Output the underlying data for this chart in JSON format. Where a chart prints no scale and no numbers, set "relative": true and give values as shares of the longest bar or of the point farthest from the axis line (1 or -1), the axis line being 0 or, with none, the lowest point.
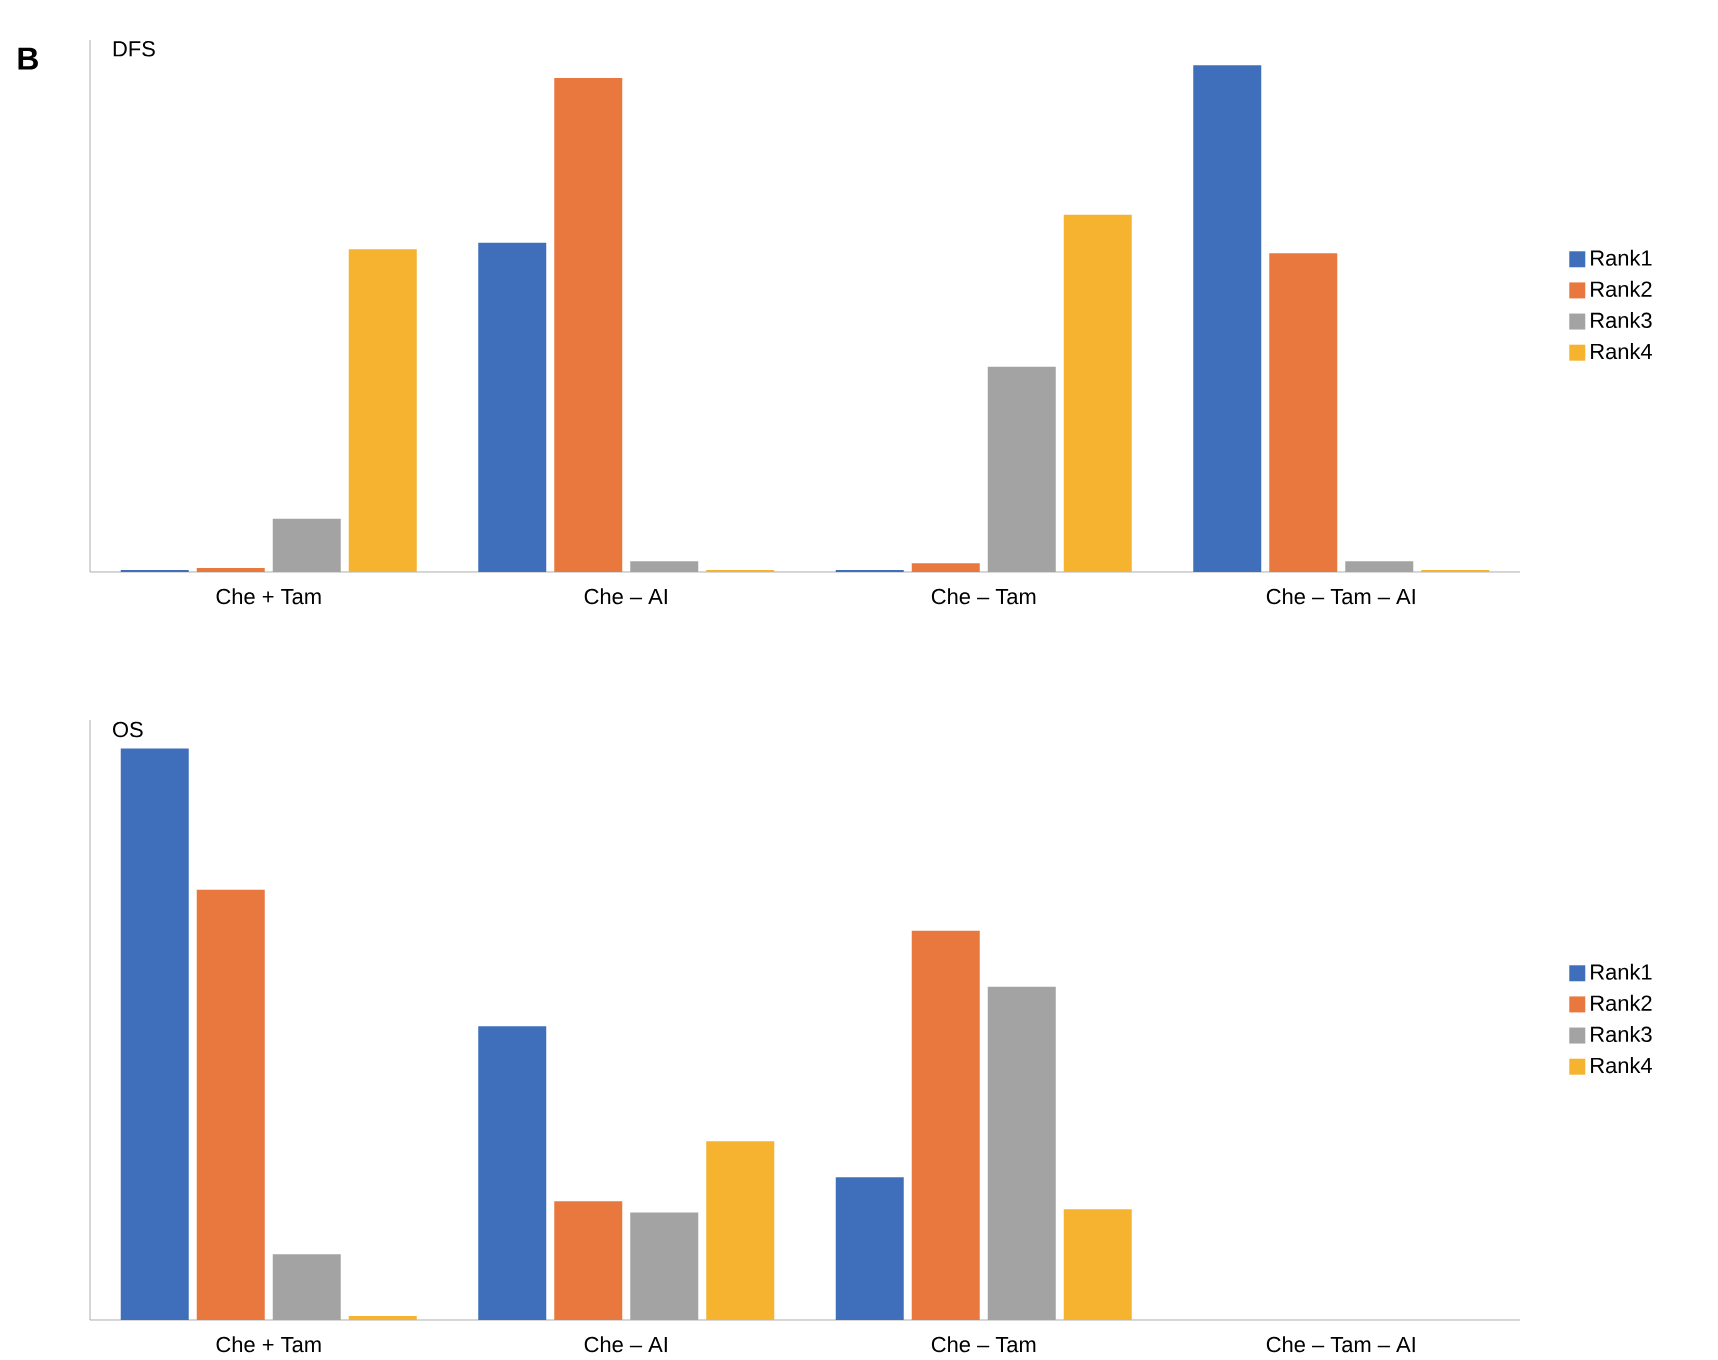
{
  "chart_data": [
    {
      "type": "bar",
      "title": "DFS",
      "relative": true,
      "legend": "right",
      "annotations": [
        "B"
      ],
      "categories": [
        "Che + Tam",
        "Che – AI",
        "Che – Tam",
        "Che – Tam – AI"
      ],
      "series": [
        {
          "name": "Rank1",
          "color": "#3f6fba",
          "values": [
            0.004,
            0.65,
            0.004,
            1
          ]
        },
        {
          "name": "Rank2",
          "color": "#e8783e",
          "values": [
            0.008,
            0.975,
            0.017,
            0.629
          ]
        },
        {
          "name": "Rank3",
          "color": "#a3a3a3",
          "values": [
            0.105,
            0.021,
            0.405,
            0.021
          ]
        },
        {
          "name": "Rank4",
          "color": "#f5b330",
          "values": [
            0.637,
            0.004,
            0.705,
            0.004
          ]
        }
      ]
    },
    {
      "type": "bar",
      "title": "OS",
      "relative": true,
      "legend": "right",
      "categories": [
        "Che + Tam",
        "Che – AI",
        "Che – Tam",
        "Che – Tam – AI"
      ],
      "series": [
        {
          "name": "Rank1",
          "color": "#3f6fba",
          "values": [
            1,
            0.514,
            0.25,
            0
          ]
        },
        {
          "name": "Rank2",
          "color": "#e8783e",
          "values": [
            0.753,
            0.208,
            0.681,
            0
          ]
        },
        {
          "name": "Rank3",
          "color": "#a3a3a3",
          "values": [
            0.115,
            0.188,
            0.583,
            0
          ]
        },
        {
          "name": "Rank4",
          "color": "#f5b330",
          "values": [
            0.007,
            0.313,
            0.194,
            0
          ]
        }
      ]
    }
  ]
}
